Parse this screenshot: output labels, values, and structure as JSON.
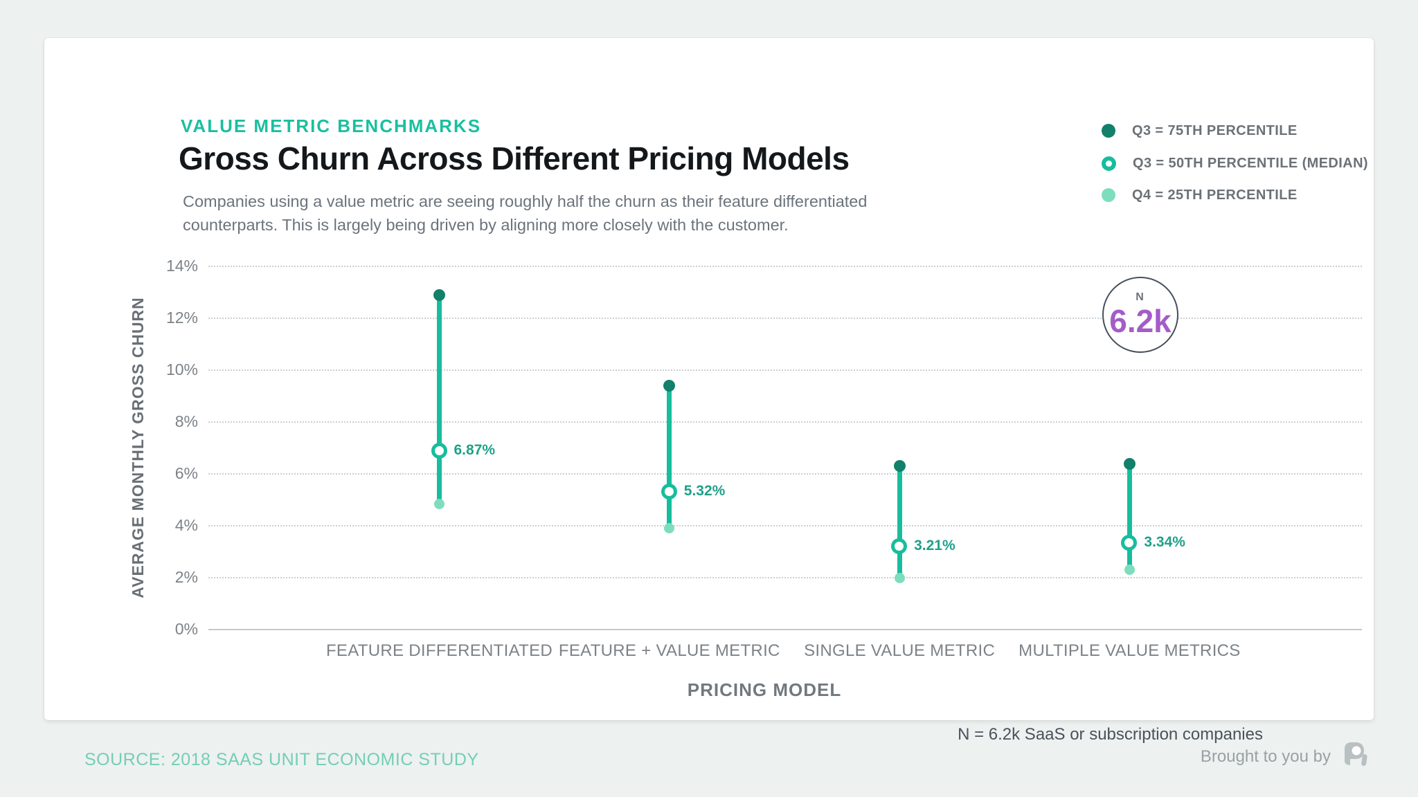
{
  "header": {
    "eyebrow": "VALUE METRIC BENCHMARKS",
    "title": "Gross Churn Across Different Pricing Models",
    "subtitle": "Companies using a value metric are seeing roughly half the churn as their feature differentiated\ncounterparts. This is largely being driven by aligning more closely with the customer."
  },
  "legend": {
    "items": [
      {
        "marker": "dot-dark",
        "label": "Q3 = 75TH PERCENTILE"
      },
      {
        "marker": "ring",
        "label": "Q3 = 50TH PERCENTILE (MEDIAN)"
      },
      {
        "marker": "dot-light",
        "label": "Q4 = 25TH PERCENTILE"
      }
    ]
  },
  "colors": {
    "accent_teal": "#1abfa0",
    "line_teal": "#17bd9d",
    "dark_teal": "#12806a",
    "light_teal": "#7eddbd",
    "label_teal": "#1ea189",
    "purple": "#a45cc8"
  },
  "chart_data": {
    "type": "dumbbell",
    "title": "Gross Churn Across Different Pricing Models",
    "xlabel": "PRICING MODEL",
    "ylabel": "AVERAGE MONTHLY GROSS CHURN",
    "ylim": [
      0,
      14
    ],
    "yticks": [
      0,
      2,
      4,
      6,
      8,
      10,
      12,
      14
    ],
    "ytick_labels": [
      "0%",
      "2%",
      "4%",
      "6%",
      "8%",
      "10%",
      "12%",
      "14%"
    ],
    "grid": "horizontal-dotted",
    "legend_position": "top-right",
    "categories": [
      "FEATURE DIFFERENTIATED",
      "FEATURE + VALUE METRIC",
      "SINGLE VALUE METRIC",
      "MULTIPLE VALUE METRICS"
    ],
    "series": [
      {
        "name": "Q3 = 75TH PERCENTILE",
        "role": "p75",
        "values": [
          12.9,
          9.4,
          6.3,
          6.4
        ]
      },
      {
        "name": "Q3 = 50TH PERCENTILE (MEDIAN)",
        "role": "median",
        "values": [
          6.87,
          5.32,
          3.21,
          3.34
        ]
      },
      {
        "name": "Q4 = 25TH PERCENTILE",
        "role": "p25",
        "values": [
          4.85,
          3.9,
          2.0,
          2.3
        ]
      }
    ],
    "median_labels": [
      "6.87%",
      "5.32%",
      "3.21%",
      "3.34%"
    ],
    "annotations": {
      "sample_label": "N",
      "sample_value": "6.2k",
      "note": "N = 6.2k SaaS or subscription companies"
    }
  },
  "footer": {
    "source": "SOURCE: 2018 SAAS UNIT ECONOMIC STUDY",
    "attribution": "Brought to you by",
    "logo": "profitwell-logo"
  }
}
